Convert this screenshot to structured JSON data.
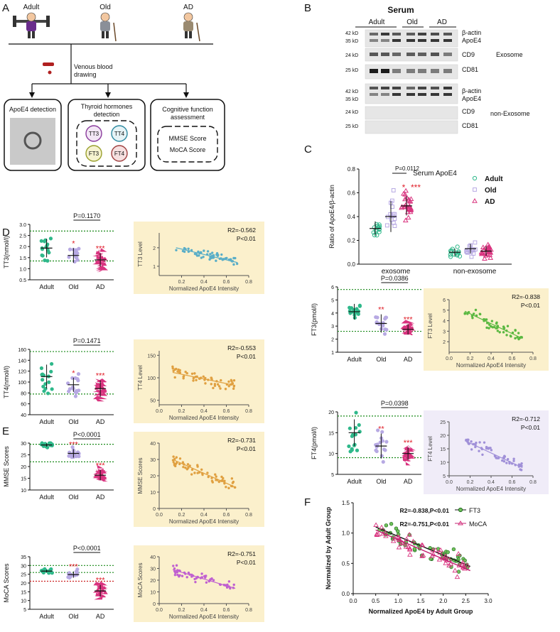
{
  "panel_letters": [
    "A",
    "B",
    "C",
    "D",
    "E",
    "F"
  ],
  "panel_a": {
    "groups": [
      "Adult",
      "Old",
      "AD"
    ],
    "blood_label": [
      "Venous blood",
      "drawing"
    ],
    "box1": "ApoE4 detection",
    "box2": [
      "Thyroid hormones",
      "detection"
    ],
    "hormones": [
      "TT3",
      "TT4",
      "FT3",
      "FT4"
    ],
    "box3": [
      "Cognitive function",
      "assessment"
    ],
    "scores": [
      "MMSE Score",
      "MoCA Score"
    ]
  },
  "panel_b": {
    "title": "Serum",
    "groups": [
      "Adult",
      "Old",
      "AD"
    ],
    "kd_top": [
      "42 kD",
      "35 kD",
      "24 kD",
      "25 kD"
    ],
    "kd_bottom": [
      "42 kD",
      "35 kD",
      "24 kD",
      "25 kD"
    ],
    "labels_top": [
      "β-actin",
      "ApoE4",
      "CD9",
      "CD81"
    ],
    "labels_bottom": [
      "β-actin",
      "ApoE4",
      "CD9",
      "CD81"
    ],
    "exosome": "Exosome",
    "non_exosome": "non-Exosome"
  },
  "colors": {
    "adult": "#2eb88a",
    "old": "#b7a9e3",
    "ad": "#d9337f",
    "cream": "#fbf0cc",
    "lav": "#f0ecf8",
    "sig": "#e0202a",
    "green_line": "#1a8a1a",
    "red_line": "#cc2020"
  },
  "chart_data": [
    {
      "id": "C",
      "type": "scatter",
      "title": "Serum ApoE4",
      "ylabel": "Ratio of ApoE4/β-actin",
      "categories": [
        "exosome",
        "non-exosome"
      ],
      "ylim": [
        0,
        0.8
      ],
      "yticks": [
        "0.0",
        "0.2",
        "0.4",
        "0.6",
        "0.8"
      ],
      "legend": [
        "Adult",
        "Old",
        "AD"
      ],
      "pvalue": "P=0.0112",
      "sig_old": "*",
      "sig_ad": "***",
      "series": [
        {
          "name": "Adult",
          "exosome": {
            "mean": 0.3,
            "sd": 0.06
          },
          "non_exosome": {
            "mean": 0.1,
            "sd": 0.03
          }
        },
        {
          "name": "Old",
          "exosome": {
            "mean": 0.4,
            "sd": 0.13
          },
          "non_exosome": {
            "mean": 0.13,
            "sd": 0.04
          }
        },
        {
          "name": "AD",
          "exosome": {
            "mean": 0.49,
            "sd": 0.08
          },
          "non_exosome": {
            "mean": 0.11,
            "sd": 0.04
          }
        }
      ]
    },
    {
      "id": "TT3",
      "type": "scatter",
      "ylabel": "TT3(nmol/l)",
      "ylim": [
        0.5,
        3
      ],
      "yticks": [
        "0.5",
        "1.0",
        "1.5",
        "2.0",
        "2.5",
        "3.0"
      ],
      "categories": [
        "Adult",
        "Old",
        "AD"
      ],
      "pvalue": "P=0.1170",
      "sig_old": "*",
      "sig_ad": "***",
      "ref": [
        2.7,
        1.35
      ],
      "groups": [
        {
          "mean": 1.93,
          "sd": 0.42
        },
        {
          "mean": 1.6,
          "sd": 0.33
        },
        {
          "mean": 1.4,
          "sd": 0.3
        }
      ]
    },
    {
      "id": "TT4",
      "type": "scatter",
      "ylabel": "TT4(nmol/l)",
      "ylim": [
        40,
        160
      ],
      "yticks": [
        "40",
        "60",
        "80",
        "100",
        "120",
        "140",
        "160"
      ],
      "categories": [
        "Adult",
        "Old",
        "AD"
      ],
      "pvalue": "P=0.1471",
      "sig_old": "*",
      "sig_ad": "***",
      "ref": [
        156,
        78
      ],
      "groups": [
        {
          "mean": 110,
          "sd": 22
        },
        {
          "mean": 95,
          "sd": 13
        },
        {
          "mean": 88,
          "sd": 15
        }
      ]
    },
    {
      "id": "MMSE",
      "type": "scatter",
      "ylabel": "MMSE Scores",
      "ylim": [
        10,
        30
      ],
      "yticks": [
        "10",
        "15",
        "20",
        "25",
        "30"
      ],
      "categories": [
        "Adult",
        "Old",
        "AD"
      ],
      "pvalue": "P<0.0001",
      "sig_old": "***",
      "sig_ad": "***",
      "ref": [
        29.5,
        22
      ],
      "groups": [
        {
          "mean": 29.2,
          "sd": 0.7
        },
        {
          "mean": 25.6,
          "sd": 1.8
        },
        {
          "mean": 16.3,
          "sd": 2.2
        }
      ]
    },
    {
      "id": "MoCA",
      "type": "scatter",
      "ylabel": "MoCA Scores",
      "ylim": [
        5,
        35
      ],
      "yticks": [
        "5",
        "10",
        "15",
        "20",
        "25",
        "30",
        "35"
      ],
      "categories": [
        "Adult",
        "Old",
        "AD"
      ],
      "pvalue": "P<0.0001",
      "sig_old": "***",
      "sig_ad": "***",
      "ref": [
        30,
        26,
        21
      ],
      "groups": [
        {
          "mean": 26.8,
          "sd": 0.8
        },
        {
          "mean": 24.8,
          "sd": 1.8
        },
        {
          "mean": 15.5,
          "sd": 3.4
        }
      ]
    },
    {
      "id": "FT3",
      "type": "scatter",
      "ylabel": "FT3(pmol/l)",
      "ylim": [
        1,
        6
      ],
      "yticks": [
        "1",
        "2",
        "3",
        "4",
        "5",
        "6"
      ],
      "categories": [
        "Adult",
        "Old",
        "AD"
      ],
      "pvalue": "P=0.0386",
      "sig_old": "**",
      "sig_ad": "***",
      "ref": [
        5.8,
        2.6
      ],
      "groups": [
        {
          "mean": 4.1,
          "sd": 0.6
        },
        {
          "mean": 3.2,
          "sd": 0.7
        },
        {
          "mean": 2.75,
          "sd": 0.4
        }
      ]
    },
    {
      "id": "FT4",
      "type": "scatter",
      "ylabel": "FT4(pmol/l)",
      "ylim": [
        5,
        20
      ],
      "yticks": [
        "5",
        "10",
        "15",
        "20"
      ],
      "categories": [
        "Adult",
        "Old",
        "AD"
      ],
      "pvalue": "P=0.0398",
      "sig_old": "**",
      "sig_ad": "***",
      "ref": [
        19,
        9
      ],
      "groups": [
        {
          "mean": 15,
          "sd": 3.2
        },
        {
          "mean": 11.8,
          "sd": 3
        },
        {
          "mean": 10,
          "sd": 1.5
        }
      ]
    },
    {
      "id": "corr_TT3",
      "type": "scatter",
      "xlabel": "Normalized ApoE4 Intensity",
      "ylabel": "TT3 Level",
      "xlim": [
        0,
        0.8
      ],
      "ylim": [
        0.5,
        2.8
      ],
      "xticks": [
        "0.2",
        "0.4",
        "0.6",
        "0.8"
      ],
      "yticks": [
        "1",
        "2"
      ],
      "r2": "R2=-0.562",
      "p": "P<0.01",
      "fit": [
        [
          0.15,
          2.0
        ],
        [
          0.7,
          1.2
        ]
      ]
    },
    {
      "id": "corr_TT4",
      "type": "scatter",
      "xlabel": "Normalized ApoE4 Intensity",
      "ylabel": "TT4 Level",
      "xlim": [
        0,
        0.8
      ],
      "ylim": [
        40,
        160
      ],
      "xticks": [
        "0.0",
        "0.2",
        "0.4",
        "0.6",
        "0.8"
      ],
      "yticks": [
        "50",
        "100",
        "150"
      ],
      "r2": "R2=-0.553",
      "p": "P<0.01",
      "fit": [
        [
          0.12,
          112
        ],
        [
          0.68,
          83
        ]
      ]
    },
    {
      "id": "corr_MMSE",
      "type": "scatter",
      "xlabel": "Normalized ApoE4 Intensity",
      "ylabel": "MMSE Scores",
      "xlim": [
        0,
        0.8
      ],
      "ylim": [
        0,
        40
      ],
      "xticks": [
        "0.0",
        "0.2",
        "0.4",
        "0.6",
        "0.8"
      ],
      "yticks": [
        "0",
        "10",
        "20",
        "30",
        "40"
      ],
      "r2": "R2=-0.731",
      "p": "P<0.01",
      "fit": [
        [
          0.12,
          30
        ],
        [
          0.68,
          13
        ]
      ]
    },
    {
      "id": "corr_MoCA",
      "type": "scatter",
      "xlabel": "Normalized ApoE4 Intensity",
      "ylabel": "MoCA Scores",
      "xlim": [
        0,
        0.8
      ],
      "ylim": [
        0,
        40
      ],
      "xticks": [
        "0.0",
        "0.2",
        "0.4",
        "0.6",
        "0.8"
      ],
      "yticks": [
        "0",
        "10",
        "20",
        "30",
        "40"
      ],
      "r2": "R2=-0.751",
      "p": "P<0.01",
      "fit": [
        [
          0.12,
          29
        ],
        [
          0.68,
          13
        ]
      ]
    },
    {
      "id": "corr_FT3",
      "type": "scatter",
      "xlabel": "Normalized ApoE4 Intensity",
      "ylabel": "FT3 Level",
      "xlim": [
        0,
        0.8
      ],
      "ylim": [
        1,
        6
      ],
      "xticks": [
        "0.0",
        "0.2",
        "0.4",
        "0.6",
        "0.8"
      ],
      "yticks": [
        "2",
        "3",
        "4",
        "5",
        "6"
      ],
      "r2": "R2=-0.838",
      "p": "P<0.01",
      "fit": [
        [
          0.15,
          4.9
        ],
        [
          0.7,
          2.3
        ]
      ]
    },
    {
      "id": "corr_FT4",
      "type": "scatter",
      "xlabel": "Normalized ApoE4 Intensity",
      "ylabel": "FT4 Level",
      "xlim": [
        0,
        0.8
      ],
      "ylim": [
        5,
        25
      ],
      "xticks": [
        "0.0",
        "0.2",
        "0.4",
        "0.6",
        "0.8"
      ],
      "yticks": [
        "5",
        "10",
        "15",
        "20",
        "25"
      ],
      "r2": "R2=-0.712",
      "p": "P<0.01",
      "fit": [
        [
          0.15,
          18
        ],
        [
          0.7,
          8
        ]
      ]
    },
    {
      "id": "F",
      "type": "scatter",
      "xlabel": "Normalized ApoE4 by Adult Group",
      "ylabel": "Normalized by Adult Group",
      "xlim": [
        0,
        3
      ],
      "ylim": [
        0,
        1.5
      ],
      "xticks": [
        "0.0",
        "0.5",
        "1.0",
        "1.5",
        "2.0",
        "2.5",
        "3.0"
      ],
      "yticks": [
        "0.0",
        "0.5",
        "1.0",
        "1.5"
      ],
      "annotations": [
        "R2=-0.838,P<0.01",
        "R2=-0.751,P<0.01"
      ],
      "legend": [
        "FT3",
        "MoCA"
      ],
      "series": [
        {
          "name": "FT3",
          "fit": [
            [
              0.5,
              1.1
            ],
            [
              2.6,
              0.45
            ]
          ]
        },
        {
          "name": "MoCA",
          "fit": [
            [
              0.5,
              1.05
            ],
            [
              2.6,
              0.38
            ]
          ]
        }
      ]
    }
  ]
}
